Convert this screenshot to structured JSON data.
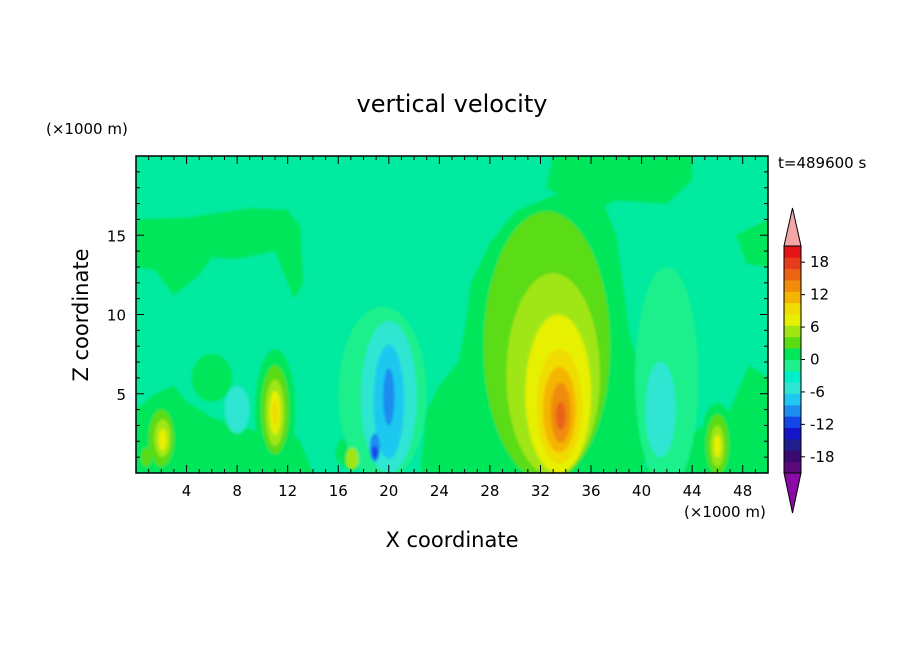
{
  "chart_data": {
    "type": "heatmap",
    "title": "vertical velocity",
    "xlabel": "X coordinate",
    "ylabel": "Z coordinate",
    "x_unit": "(×1000 m)",
    "y_unit": "(×1000 m)",
    "time_label": "t=489600 s",
    "xlim": [
      0,
      50
    ],
    "ylim": [
      0,
      20
    ],
    "x_ticks": [
      4,
      8,
      12,
      16,
      20,
      24,
      28,
      32,
      36,
      40,
      44,
      48
    ],
    "y_ticks": [
      5,
      10,
      15
    ],
    "colorbar": {
      "tick_labels": [
        "18",
        "12",
        "6",
        "0",
        "-6",
        "-12",
        "-18"
      ],
      "tick_values": [
        18,
        12,
        6,
        0,
        -6,
        -12,
        -18
      ],
      "range": [
        -21,
        21
      ],
      "colors": [
        "#5a0a7a",
        "#3a0a6e",
        "#1e1e8c",
        "#1414c8",
        "#1446e6",
        "#1e8cf0",
        "#1ec8f0",
        "#2ee6d2",
        "#00eec8",
        "#1ef08c",
        "#00e65a",
        "#5adc14",
        "#a0e614",
        "#e6f000",
        "#f0dc00",
        "#f5b400",
        "#f08c0a",
        "#eb6414",
        "#e63c1e",
        "#e61414"
      ],
      "over_color": "#f4a6a6",
      "under_color": "#8a0aa6"
    },
    "background_color": "#00eaa0",
    "features": [
      {
        "kind": "updraft",
        "x": 33.5,
        "z": 3.8,
        "w": 17
      },
      {
        "kind": "updraft",
        "x": 11,
        "z": 4,
        "w": 8
      },
      {
        "kind": "updraft",
        "x": 2,
        "z": 2.2,
        "w": 6
      },
      {
        "kind": "updraft",
        "x": 46,
        "z": 1.8,
        "w": 6
      },
      {
        "kind": "downdraft",
        "x": 20,
        "z": 5,
        "w": -8
      },
      {
        "kind": "downdraft",
        "x": 19,
        "z": 1.5,
        "w": -12
      }
    ]
  }
}
